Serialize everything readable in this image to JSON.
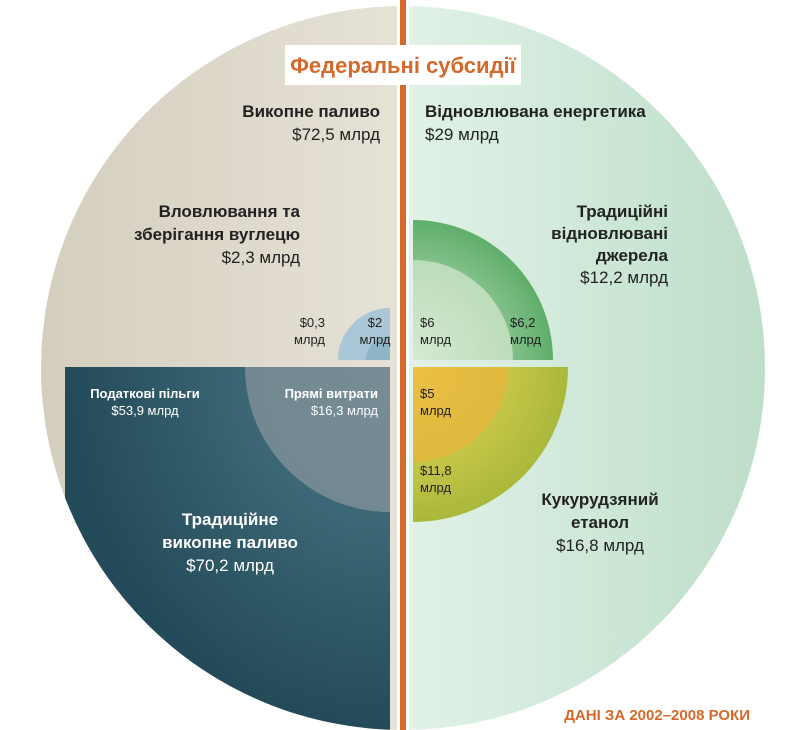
{
  "title": "Федеральні субсидії",
  "note": "ДАНІ ЗА 2002–2008 РОКИ",
  "labels": [
    {
      "name": [
        "Викопне паливо"
      ],
      "amount": [
        "$72,5 млрд"
      ]
    },
    {
      "name": [
        "Вловлювання та",
        "зберігання вуглецю"
      ],
      "amount": [
        "$2,3 млрд"
      ]
    },
    {
      "name": [],
      "amount": [
        "$0,3",
        "млрд"
      ]
    },
    {
      "name": [],
      "amount": [
        "$2",
        "млрд"
      ]
    },
    {
      "name": [
        "Податкові пільги"
      ],
      "amount": [
        "$53,9 млрд"
      ]
    },
    {
      "name": [
        "Прямі витрати"
      ],
      "amount": [
        "$16,3 млрд"
      ]
    },
    {
      "name": [
        "Традиційне",
        "викопне паливо"
      ],
      "amount": [
        "$70,2 млрд"
      ]
    },
    {
      "name": [
        "Відновлювана енергетика"
      ],
      "amount": [
        "$29 млрд"
      ]
    },
    {
      "name": [
        "Традиційні",
        "відновлювані",
        "джерела"
      ],
      "amount": [
        "$12,2 млрд"
      ]
    },
    {
      "name": [],
      "amount": [
        "$6",
        "млрд"
      ]
    },
    {
      "name": [],
      "amount": [
        "$6,2",
        "млрд"
      ]
    },
    {
      "name": [],
      "amount": [
        "$5",
        "млрд"
      ]
    },
    {
      "name": [],
      "amount": [
        "$11,8",
        "млрд"
      ]
    },
    {
      "name": [
        "Кукурудзяний",
        "етанол"
      ],
      "amount": [
        "$16,8 млрд"
      ]
    }
  ]
}
